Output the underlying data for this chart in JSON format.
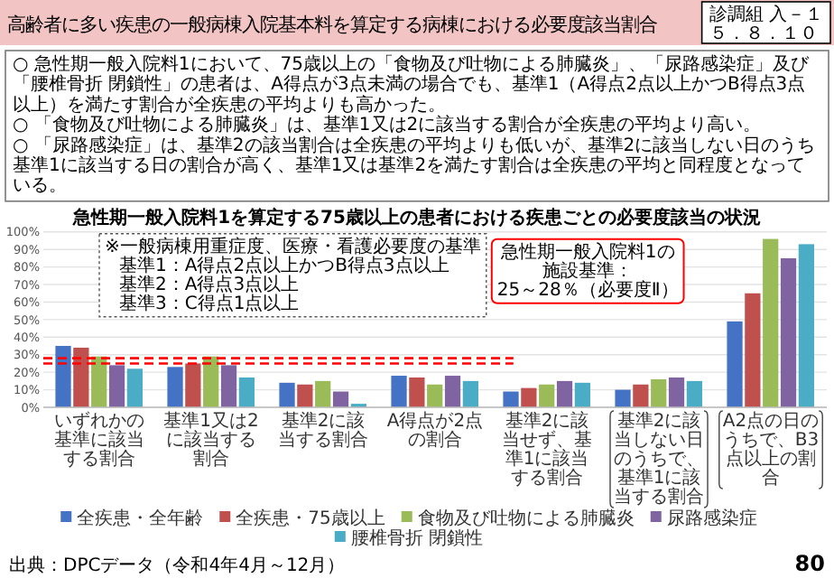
{
  "chart_data": {
    "type": "bar",
    "title": "高齢者に多い疾患の一般病棟入院基本料を算定する病棟における必要度該当割合",
    "subtitle": "急性期一般入院料1を算定する75歳以上の患者における疾患ごとの必要度該当の状況",
    "categories": [
      "いずれかの基準に該当する割合",
      "基準1又は2に該当する割合",
      "基準2に該当する割合",
      "A得点が2点の割合",
      "基準2に該当せず、基準1に該当する割合",
      "基準2に該当しない日のうちで、基準1に該当する割合",
      "A2点の日のうちで、B3点以上の割合"
    ],
    "series": [
      {
        "name": "全疾患・全年齢",
        "color": "#4472c4",
        "values": [
          35,
          23,
          14,
          18,
          9,
          10,
          49
        ]
      },
      {
        "name": "全疾患・75歳以上",
        "color": "#c0504d",
        "values": [
          34,
          25,
          13,
          17,
          11,
          13,
          65
        ]
      },
      {
        "name": "食物及び吐物による肺臓炎",
        "color": "#9bbb59",
        "values": [
          29,
          29,
          15,
          13,
          13,
          16,
          96
        ]
      },
      {
        "name": "尿路感染症",
        "color": "#8064a2",
        "values": [
          24,
          24,
          9,
          18,
          15,
          17,
          85
        ]
      },
      {
        "name": "腰椎骨折 閉鎖性",
        "color": "#4bacc6",
        "values": [
          22,
          17,
          2,
          15,
          14,
          15,
          93
        ]
      }
    ],
    "ylim": [
      0,
      100
    ],
    "yticks": [
      {
        "value": 0,
        "label": "0%"
      },
      {
        "value": 10,
        "label": "10%"
      },
      {
        "value": 20,
        "label": "20%"
      },
      {
        "value": 30,
        "label": "30%"
      },
      {
        "value": 40,
        "label": "40%"
      },
      {
        "value": 50,
        "label": "50%"
      },
      {
        "value": 60,
        "label": "60%"
      },
      {
        "value": 70,
        "label": "70%"
      },
      {
        "value": 80,
        "label": "80%"
      },
      {
        "value": 90,
        "label": "90%"
      },
      {
        "value": 100,
        "label": "100%"
      }
    ],
    "grid": "y",
    "legend": "bottom",
    "ref_lines": [
      {
        "axis": "y",
        "value": 25,
        "color": "#ff0000",
        "line_style": "dashed"
      },
      {
        "axis": "y",
        "value": 28,
        "color": "#ff0000",
        "line_style": "dashed"
      }
    ],
    "annotations": [
      "診調組 入－１",
      "５．８．１０",
      "○ 急性期一般入院料1において、75歳以上の「食物及び吐物による肺臓炎」、「尿路感染症」及び「腰椎骨折 閉鎖性」の患者は、A得点が3点未満の場合でも、基準1（A得点2点以上かつB得点3点以上）を満たす割合が全疾患の平均よりも高かった。",
      "○ 「食物及び吐物による肺臓炎」は、基準1又は2に該当する割合が全疾患の平均より高い。",
      "○ 「尿路感染症」は、基準2の該当割合は全疾患の平均よりも低いが、基準2に該当しない日のうち基準1に該当する日の割合が高く、基準1又は基準2を満たす割合は全疾患の平均と同程度となっている。",
      "※一般病棟用重症度、医療・看護必要度の基準",
      "基準1：A得点2点以上かつB得点3点以上",
      "基準2：A得点3点以上",
      "基準3：C得点1点以上",
      "急性期一般入院料1の",
      "施設基準：",
      "25～28％（必要度Ⅱ）",
      "出典：DPCデータ（令和4年4月～12月）",
      "80"
    ]
  }
}
